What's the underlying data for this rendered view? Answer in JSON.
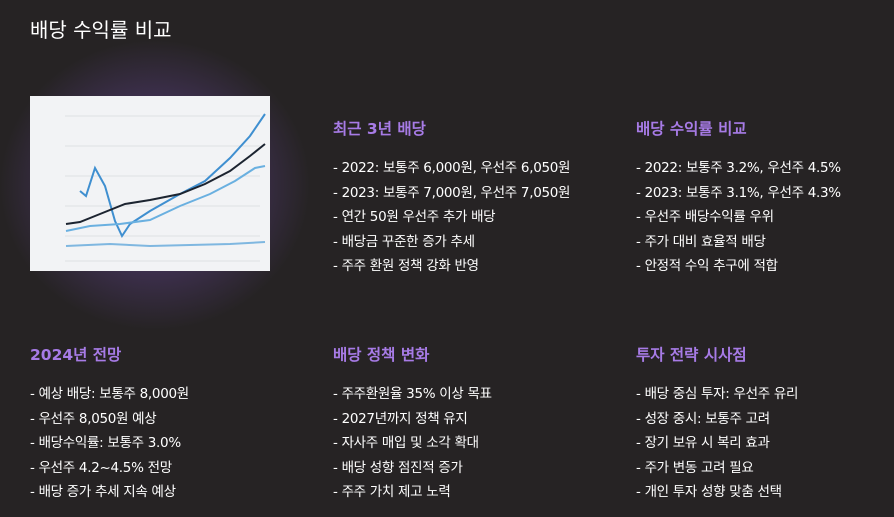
{
  "header": {
    "title": "배당 수익률 비교"
  },
  "sections": [
    {
      "heading": "최근 3년 배당",
      "items": [
        "- 2022: 보통주 6,000원, 우선주 6,050원",
        "- 2023: 보통주 7,000원, 우선주 7,050원",
        "- 연간 50원 우선주 추가 배당",
        "- 배당금 꾸준한 증가 추세",
        "- 주주 환원 정책 강화 반영"
      ]
    },
    {
      "heading": "배당 수익률 비교",
      "items": [
        "- 2022: 보통주 3.2%, 우선주 4.5%",
        "- 2023: 보통주 3.1%, 우선주 4.3%",
        "- 우선주 배당수익률 우위",
        "- 주가 대비 효율적 배당",
        "- 안정적 수익 추구에 적합"
      ]
    },
    {
      "heading": "2024년 전망",
      "items": [
        "- 예상 배당: 보통주 8,000원",
        "- 우선주 8,050원 예상",
        "- 배당수익률: 보통주 3.0%",
        "- 우선주 4.2~4.5% 전망",
        "- 배당 증가 추세 지속 예상"
      ]
    },
    {
      "heading": "배당 정책 변화",
      "items": [
        "- 주주환원율 35% 이상 목표",
        "- 2027년까지 정책 유지",
        "- 자사주 매입 및 소각 확대",
        "- 배당 성향 점진적 증가",
        "- 주주 가치 제고 노력"
      ]
    },
    {
      "heading": "투자 전략 시사점",
      "items": [
        "- 배당 중심 투자: 우선주 유리",
        "- 성장 중시: 보통주 고려",
        "- 장기 보유 시 복리 효과",
        "- 주가 변동 고려 필요",
        "- 개인 투자 성향 맞춤 선택"
      ]
    }
  ]
}
